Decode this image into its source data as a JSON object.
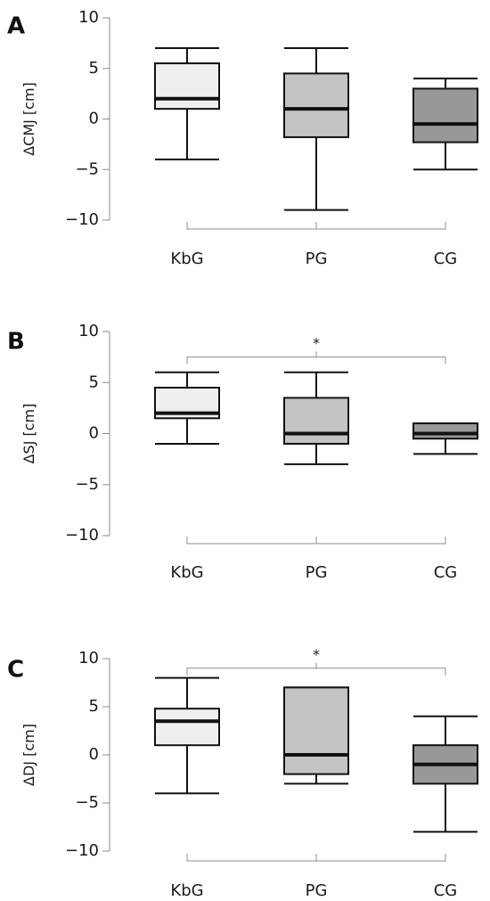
{
  "chart_data": [
    {
      "type": "box",
      "panel_label": "A",
      "ylabel": "ΔCMJ [cm]",
      "ylim": [
        -10,
        10
      ],
      "yticks": [
        -10,
        -5,
        0,
        5,
        10
      ],
      "categories": [
        "KbG",
        "PG",
        "CG"
      ],
      "fill_colors": [
        "#efefef",
        "#c4c4c4",
        "#989898"
      ],
      "boxes": [
        {
          "category": "KbG",
          "min": -4,
          "q1": 1,
          "median": 2,
          "q3": 5.5,
          "max": 7
        },
        {
          "category": "PG",
          "min": -9,
          "q1": -1.8,
          "median": 1,
          "q3": 4.5,
          "max": 7
        },
        {
          "category": "CG",
          "min": -5,
          "q1": -2.3,
          "median": -0.5,
          "q3": 3,
          "max": 4
        }
      ],
      "significance": null
    },
    {
      "type": "box",
      "panel_label": "B",
      "ylabel": "ΔSJ [cm]",
      "ylim": [
        -10,
        10
      ],
      "yticks": [
        -10,
        -5,
        0,
        5,
        10
      ],
      "categories": [
        "KbG",
        "PG",
        "CG"
      ],
      "fill_colors": [
        "#efefef",
        "#c4c4c4",
        "#989898"
      ],
      "boxes": [
        {
          "category": "KbG",
          "min": -1,
          "q1": 1.5,
          "median": 2,
          "q3": 4.5,
          "max": 6
        },
        {
          "category": "PG",
          "min": -3,
          "q1": -1,
          "median": 0,
          "q3": 3.5,
          "max": 6
        },
        {
          "category": "CG",
          "min": -2,
          "q1": -0.5,
          "median": 0,
          "q3": 1,
          "max": 1
        }
      ],
      "significance": {
        "from": "KbG",
        "to": "CG",
        "label": "*",
        "level": 7.5
      }
    },
    {
      "type": "box",
      "panel_label": "C",
      "ylabel": "ΔDJ [cm]",
      "ylim": [
        -10,
        10
      ],
      "yticks": [
        -10,
        -5,
        0,
        5,
        10
      ],
      "categories": [
        "KbG",
        "PG",
        "CG"
      ],
      "fill_colors": [
        "#efefef",
        "#c4c4c4",
        "#989898"
      ],
      "boxes": [
        {
          "category": "KbG",
          "min": -4,
          "q1": 1,
          "median": 3.5,
          "q3": 4.8,
          "max": 8
        },
        {
          "category": "PG",
          "min": -3,
          "q1": -2,
          "median": 0,
          "q3": 7,
          "max": 7
        },
        {
          "category": "CG",
          "min": -8,
          "q1": -3,
          "median": -1,
          "q3": 1,
          "max": 4
        }
      ],
      "significance": {
        "from": "KbG",
        "to": "CG",
        "label": "*",
        "level": 9
      }
    }
  ]
}
